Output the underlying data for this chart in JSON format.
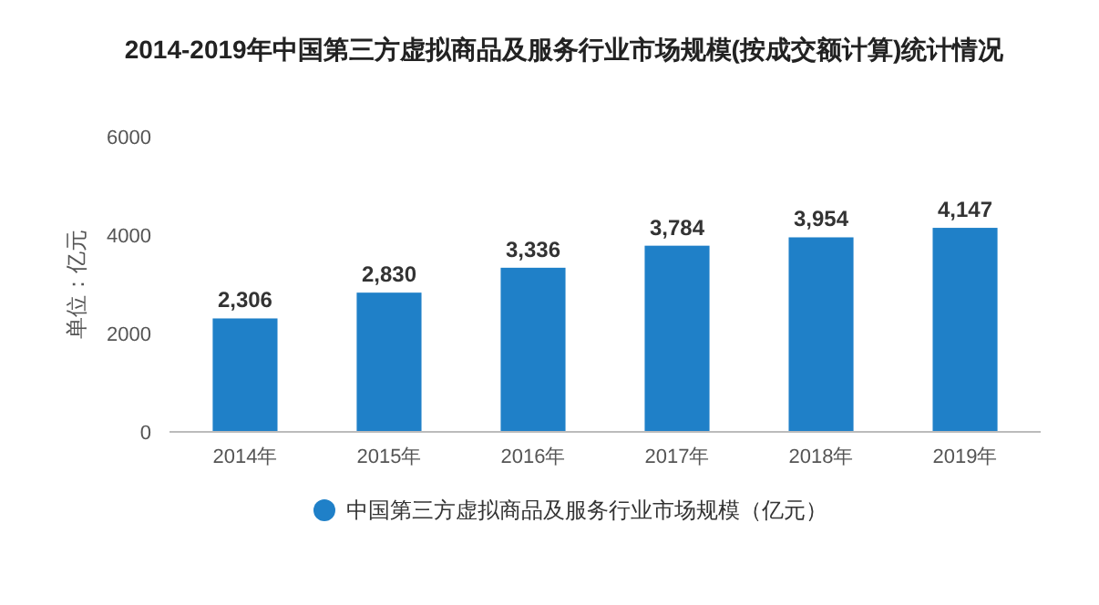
{
  "chart_data": {
    "type": "bar",
    "title": "2014-2019年中国第三方虚拟商品及服务行业市场规模(按成交额计算)统计情况",
    "ylabel": "单位：亿元",
    "categories": [
      "2014年",
      "2015年",
      "2016年",
      "2017年",
      "2018年",
      "2019年"
    ],
    "series": [
      {
        "name": "中国第三方虚拟商品及服务行业市场规模（亿元）",
        "color": "#1f80c8",
        "values": [
          2306,
          2830,
          3336,
          3784,
          3954,
          4147
        ]
      }
    ],
    "value_labels": [
      "2,306",
      "2,830",
      "3,336",
      "3,784",
      "3,954",
      "4,147"
    ],
    "ylim": [
      0,
      6000
    ],
    "yticks": [
      0,
      2000,
      4000,
      6000
    ],
    "grid": false,
    "legend": "bottom"
  }
}
